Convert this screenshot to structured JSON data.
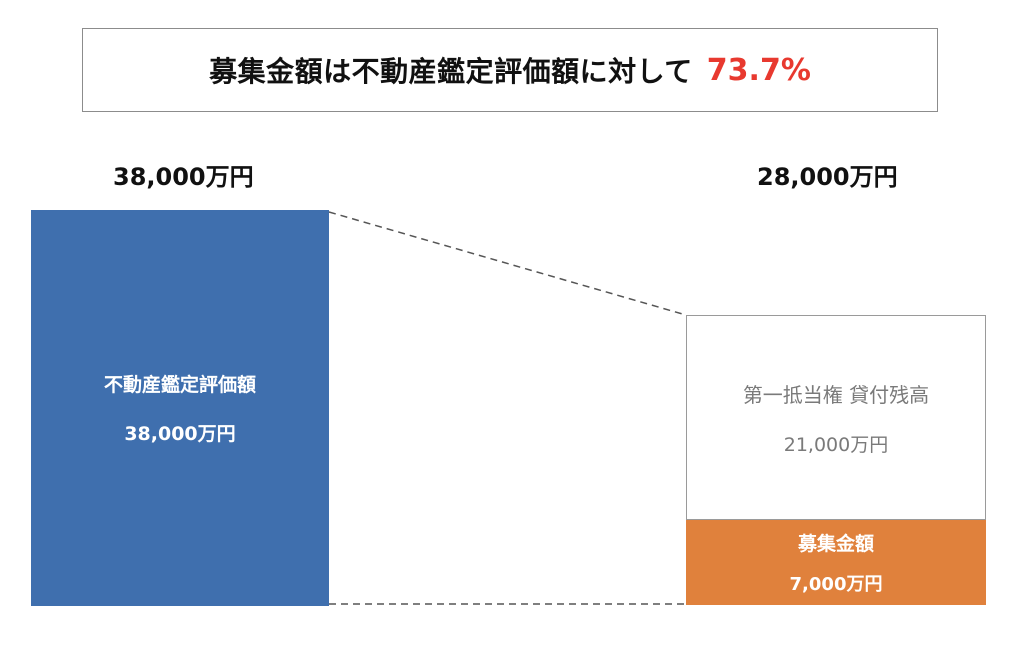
{
  "headline": {
    "text": "募集金額は不動産鑑定評価額に対して",
    "value": "73.7%",
    "value_color": "#e8392f"
  },
  "totals": {
    "left": "38,000万円",
    "right": "28,000万円"
  },
  "appraisal_bar": {
    "label": "不動産鑑定評価額",
    "value": "38,000万円",
    "color": "#3f6fae"
  },
  "loan_box": {
    "label": "第一抵当権 貸付残高",
    "value": "21,000万円"
  },
  "raise_box": {
    "label": "募集金額",
    "value": "7,000万円",
    "color": "#e0813c"
  }
}
